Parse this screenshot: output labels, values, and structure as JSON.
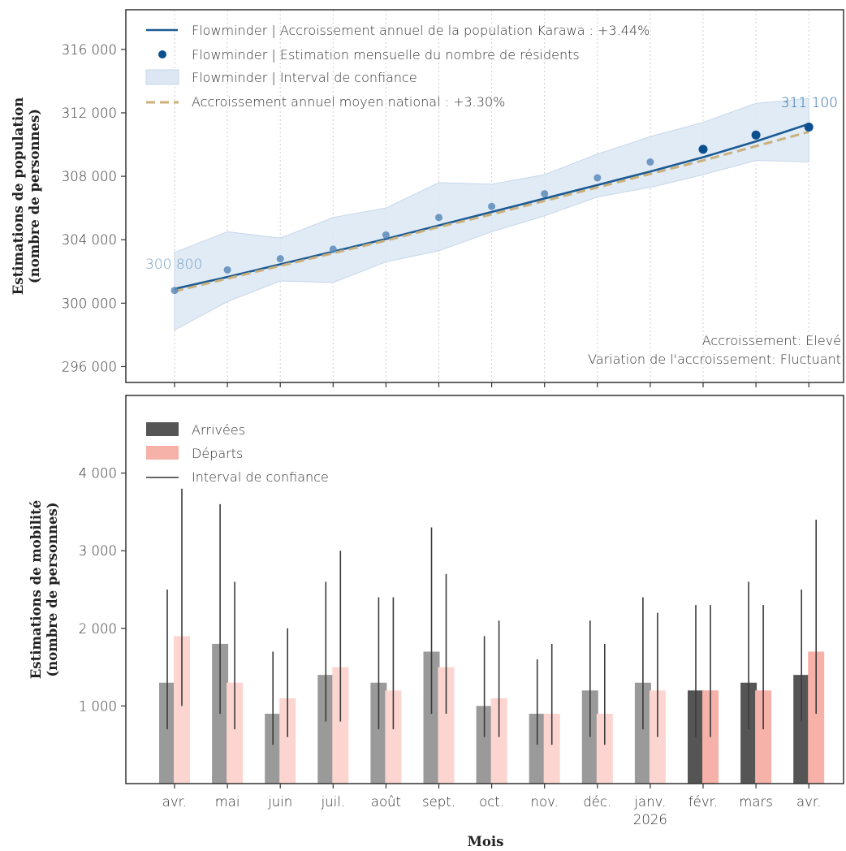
{
  "figure": {
    "xlabel": "Mois",
    "months": [
      "avr.",
      "mai",
      "juin",
      "juil.",
      "août",
      "sept.",
      "oct.",
      "nov.",
      "déc.",
      "janv.",
      "févr.",
      "mars",
      "avr."
    ],
    "year_label": "2026",
    "year_label_index": 9
  },
  "chart_data": [
    {
      "type": "line",
      "ylabel_line1": "Estimations de population",
      "ylabel_line2": "(nombre de personnes)",
      "ylim": [
        295000,
        318500
      ],
      "yticks": [
        296000,
        300000,
        304000,
        308000,
        312000,
        316000
      ],
      "ytick_labels": [
        "296 000",
        "300 000",
        "304 000",
        "308 000",
        "312 000",
        "316 000"
      ],
      "x": [
        0,
        1,
        2,
        3,
        4,
        5,
        6,
        7,
        8,
        9,
        10,
        11,
        12
      ],
      "series": [
        {
          "name": "Flowminder | Accroissement annuel de la population Karawa : +3.44%",
          "kind": "trend-line",
          "values": [
            300900,
            301650,
            302450,
            303250,
            304050,
            304900,
            305750,
            306600,
            307450,
            308300,
            309200,
            310200,
            311300
          ],
          "color": "#1b5a94"
        },
        {
          "name": "Flowminder | Estimation mensuelle du nombre de résidents",
          "kind": "points",
          "values": [
            300800,
            302100,
            302800,
            303400,
            304300,
            305400,
            306100,
            306900,
            307900,
            308900,
            309700,
            310600,
            311100
          ],
          "color": "#0b4f8f"
        },
        {
          "name": "Flowminder | Interval de confiance",
          "kind": "band",
          "lower": [
            298300,
            300100,
            301400,
            301300,
            302600,
            303300,
            304500,
            305500,
            306700,
            307300,
            308100,
            309000,
            308900
          ],
          "upper": [
            303200,
            304500,
            304100,
            305400,
            306000,
            307600,
            307500,
            308100,
            309400,
            310500,
            311400,
            312600,
            312900
          ],
          "color": "#dce7f3"
        },
        {
          "name": "Accroissement annuel moyen national : +3.30%",
          "kind": "dashed-line",
          "values": [
            300750,
            301550,
            302350,
            303150,
            303950,
            304800,
            305600,
            306450,
            307300,
            308150,
            309000,
            309900,
            310800
          ],
          "color": "#c9b07c"
        }
      ],
      "start_label": "300 800",
      "end_label": "311 100",
      "annotations": [
        "Accroissement: Elevé",
        "Variation de l'accroissement: Fluctuant"
      ],
      "legend_position": "top-left",
      "grid": "vertical dotted"
    },
    {
      "type": "bar",
      "ylabel_line1": "Estimations de mobilité",
      "ylabel_line2": "(nombre de personnes)",
      "ylim": [
        0,
        5000
      ],
      "yticks": [
        1000,
        2000,
        3000,
        4000
      ],
      "ytick_labels": [
        "1 000",
        "2 000",
        "3 000",
        "4 000"
      ],
      "series": [
        {
          "name": "Arrivées",
          "values": [
            1300,
            1800,
            900,
            1400,
            1300,
            1700,
            1000,
            900,
            1200,
            1300,
            1200,
            1300,
            1400
          ],
          "ci_low": [
            700,
            900,
            500,
            800,
            700,
            900,
            600,
            500,
            600,
            700,
            600,
            700,
            800
          ],
          "ci_high": [
            2500,
            3600,
            1700,
            2600,
            2400,
            3300,
            1900,
            1600,
            2100,
            2400,
            2300,
            2600,
            2500
          ],
          "color": "#555555",
          "color_faded": "#9a9a9a"
        },
        {
          "name": "Départs",
          "values": [
            1900,
            1300,
            1100,
            1500,
            1200,
            1500,
            1100,
            900,
            900,
            1200,
            1200,
            1200,
            1700
          ],
          "ci_low": [
            1000,
            700,
            600,
            800,
            700,
            900,
            600,
            500,
            500,
            600,
            600,
            700,
            900
          ],
          "ci_high": [
            3800,
            2600,
            2000,
            3000,
            2400,
            2700,
            2100,
            1800,
            1800,
            2200,
            2300,
            2300,
            3400
          ],
          "color": "#f6b1a8",
          "color_faded": "#fcd5d0"
        }
      ],
      "ci_legend": "Interval de confiance",
      "faded_up_to_index": 9,
      "legend_position": "top-left"
    }
  ]
}
